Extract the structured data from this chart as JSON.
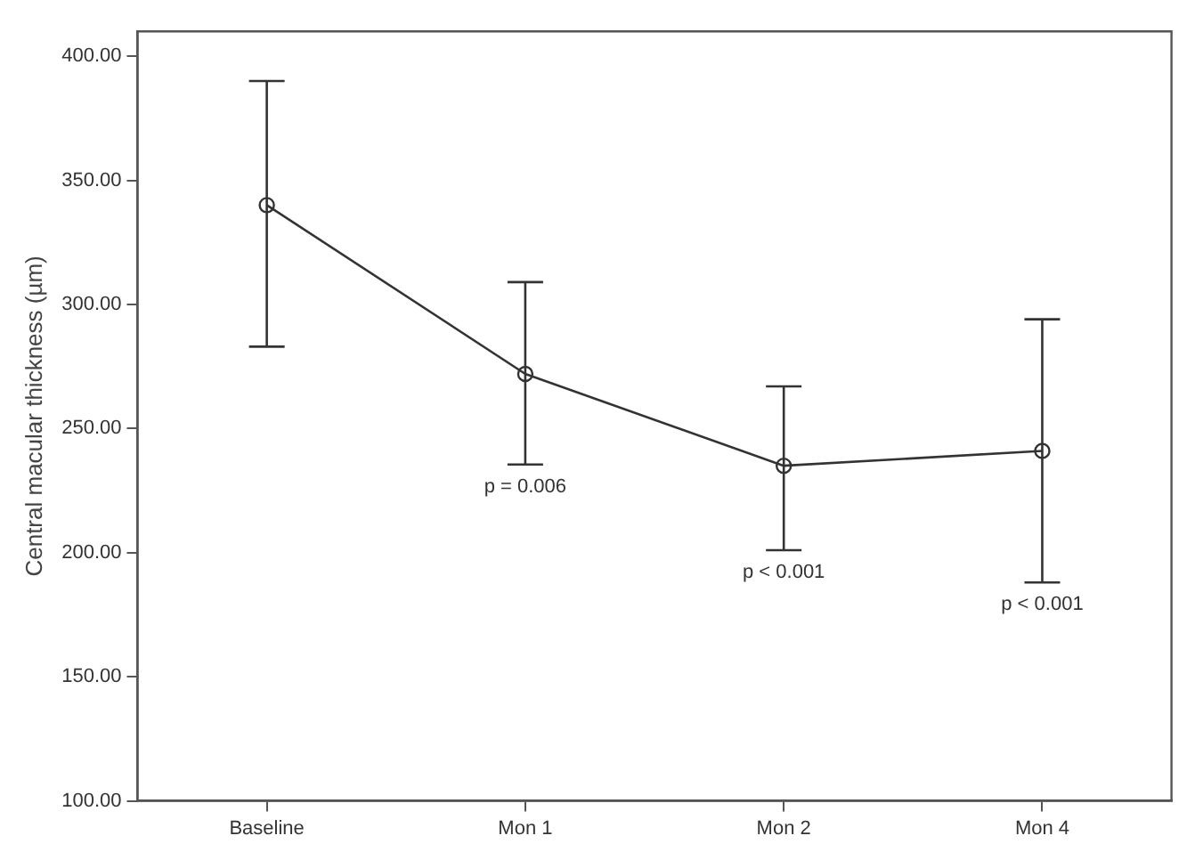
{
  "chart_data": {
    "type": "line",
    "ylabel": "Central macular thickness (µm)",
    "categories": [
      "Baseline",
      "Mon 1",
      "Mon 2",
      "Mon 4"
    ],
    "series": [
      {
        "color": "#333333",
        "values": [
          340,
          272,
          235,
          241
        ],
        "errors": [
          [
            283,
            390
          ],
          [
            235.5,
            309
          ],
          [
            201,
            267
          ],
          [
            188,
            294
          ]
        ]
      }
    ],
    "ylim": [
      100,
      410
    ],
    "yticks": [
      {
        "value": 100,
        "label": "100.00"
      },
      {
        "value": 150,
        "label": "150.00"
      },
      {
        "value": 200,
        "label": "200.00"
      },
      {
        "value": 250,
        "label": "250.00"
      },
      {
        "value": 300,
        "label": "300.00"
      },
      {
        "value": 350,
        "label": "350.00"
      },
      {
        "value": 400,
        "label": "400.00"
      }
    ],
    "marker": "circle",
    "line_style": "solid",
    "grid": false,
    "legend": false,
    "annotations": [
      {
        "text": "p = 0.006",
        "x": "Mon 1",
        "y": 235.5
      },
      {
        "text": "p < 0.001",
        "x": "Mon 2",
        "y": 201
      },
      {
        "text": "p < 0.001",
        "x": "Mon 4",
        "y": 188
      }
    ]
  }
}
